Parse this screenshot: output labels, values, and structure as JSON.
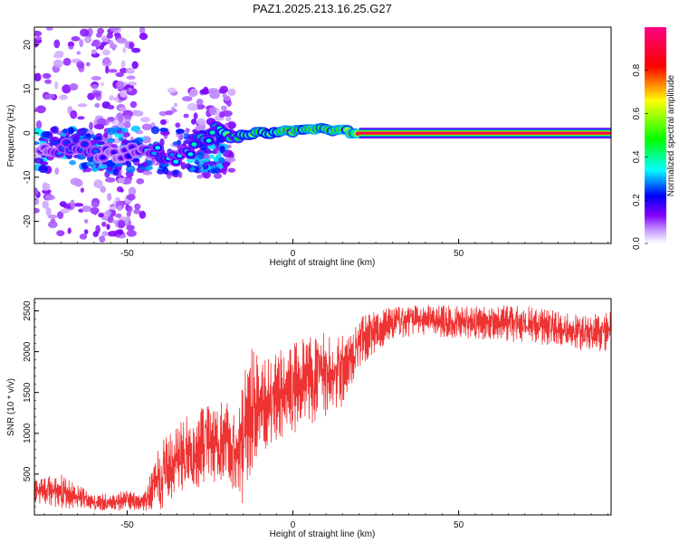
{
  "chart_data": [
    {
      "type": "heatmap",
      "title": "PAZ1.2025.213.16.25.G27",
      "xlabel": "Height of straight line (km)",
      "ylabel": "Frequency (Hz)",
      "xlim": [
        -78,
        96
      ],
      "ylim": [
        -25,
        24
      ],
      "x_ticks": [
        -50,
        0,
        50
      ],
      "y_ticks": [
        -20,
        -10,
        0,
        10,
        20
      ],
      "colorbar": {
        "label": "Normalized spectral amplitude",
        "range": [
          0,
          1
        ],
        "ticks": [
          0.0,
          0.2,
          0.4,
          0.6,
          0.8
        ],
        "colors": [
          "#ffffff",
          "#8000ff",
          "#0000ff",
          "#00ffff",
          "#00ff00",
          "#ffff00",
          "#ff0000",
          "#ff0080"
        ]
      },
      "dominant_ridge": {
        "points": [
          {
            "x": -75,
            "y": -3,
            "amp": 0.2
          },
          {
            "x": -66,
            "y": -3.5,
            "amp": 0.35
          },
          {
            "x": -55,
            "y": -5,
            "amp": 0.18
          },
          {
            "x": -45,
            "y": -3,
            "amp": 0.25
          },
          {
            "x": -40,
            "y": -4,
            "amp": 0.4
          },
          {
            "x": -35,
            "y": -7,
            "amp": 0.3
          },
          {
            "x": -30,
            "y": -3,
            "amp": 0.45
          },
          {
            "x": -24,
            "y": 0.5,
            "amp": 0.5
          },
          {
            "x": -18,
            "y": -1,
            "amp": 0.55
          },
          {
            "x": -10,
            "y": 0,
            "amp": 0.75
          },
          {
            "x": 0,
            "y": 0.5,
            "amp": 0.8
          },
          {
            "x": 8,
            "y": 1,
            "amp": 0.85
          },
          {
            "x": 15,
            "y": 0.5,
            "amp": 0.85
          },
          {
            "x": 20,
            "y": 0,
            "amp": 0.95
          },
          {
            "x": 96,
            "y": 0,
            "amp": 0.95
          }
        ]
      }
    },
    {
      "type": "line",
      "xlabel": "Height of straight line (km)",
      "ylabel": "SNR (10 * v/v)",
      "xlim": [
        -78,
        96
      ],
      "ylim": [
        0,
        2650
      ],
      "x_ticks": [
        -50,
        0,
        50
      ],
      "y_ticks": [
        500,
        1000,
        1500,
        2000,
        2500
      ],
      "color": "#ee3333",
      "envelope": {
        "x": [
          -78,
          -70,
          -60,
          -50,
          -45,
          -40,
          -35,
          -30,
          -25,
          -20,
          -17,
          -15,
          -12,
          -10,
          -5,
          0,
          5,
          10,
          15,
          20,
          25,
          30,
          40,
          50,
          60,
          70,
          80,
          90,
          96
        ],
        "y_min": [
          150,
          80,
          50,
          50,
          50,
          50,
          250,
          300,
          400,
          350,
          300,
          80,
          600,
          700,
          900,
          1000,
          1100,
          1200,
          1300,
          1800,
          2000,
          2150,
          2200,
          2150,
          2150,
          2100,
          2050,
          2000,
          2000
        ],
        "y_max": [
          450,
          500,
          250,
          300,
          250,
          900,
          1100,
          1300,
          1350,
          1400,
          1200,
          1700,
          2100,
          1900,
          2000,
          2100,
          2200,
          2300,
          2200,
          2450,
          2500,
          2550,
          2580,
          2560,
          2560,
          2580,
          2500,
          2450,
          2550
        ]
      }
    }
  ]
}
